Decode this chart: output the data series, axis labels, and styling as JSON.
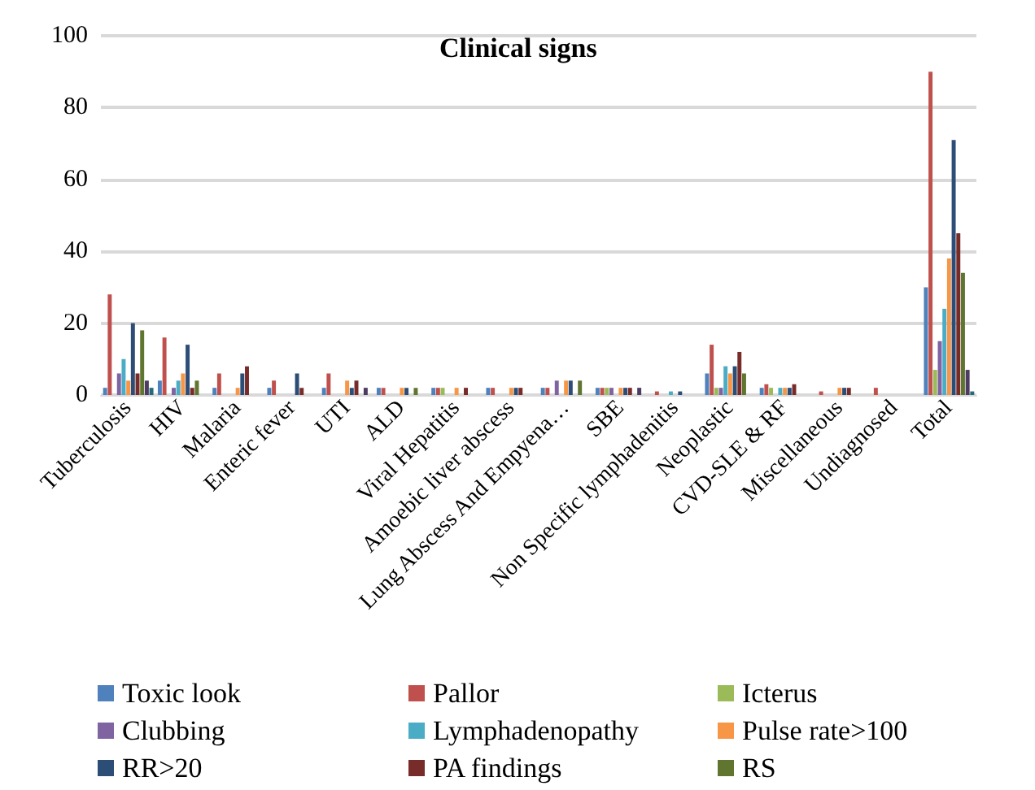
{
  "chart_data": {
    "type": "bar",
    "title": "Clinical signs",
    "categories": [
      "Tuberculosis",
      "HIV",
      "Malaria",
      "Enteric fever",
      "UTI",
      "ALD",
      "Viral Hepatitis",
      "Amoebic liver abscess",
      "Lung Abscess And Empyena…",
      "SBE",
      "Non Specific lymphadenitis",
      "Neoplastic",
      "CVD-SLE & RF",
      "Miscellaneous",
      "Undiagnosed",
      "Total"
    ],
    "series": [
      {
        "name": "Toxic look",
        "color": "#4f81bd",
        "values": [
          2,
          4,
          2,
          2,
          2,
          2,
          2,
          2,
          2,
          2,
          0,
          6,
          2,
          0,
          0,
          30
        ]
      },
      {
        "name": "Pallor",
        "color": "#c0504d",
        "values": [
          28,
          16,
          6,
          4,
          6,
          2,
          2,
          2,
          2,
          2,
          1,
          14,
          3,
          1,
          2,
          90
        ]
      },
      {
        "name": "Icterus",
        "color": "#9bbb59",
        "values": [
          0,
          0,
          0,
          0,
          0,
          0,
          2,
          0,
          0,
          2,
          0,
          2,
          2,
          0,
          0,
          7
        ]
      },
      {
        "name": "Clubbing",
        "color": "#8064a2",
        "values": [
          6,
          2,
          0,
          0,
          0,
          0,
          0,
          0,
          4,
          2,
          0,
          2,
          0,
          0,
          0,
          15
        ]
      },
      {
        "name": "Lymphadenopathy",
        "color": "#4bacc6",
        "values": [
          10,
          4,
          0,
          0,
          0,
          0,
          0,
          0,
          0,
          0,
          1,
          8,
          2,
          0,
          0,
          24
        ]
      },
      {
        "name": "Pulse rate>100",
        "color": "#f79646",
        "values": [
          4,
          6,
          2,
          0,
          4,
          2,
          2,
          2,
          4,
          2,
          0,
          6,
          2,
          2,
          0,
          38
        ]
      },
      {
        "name": "RR>20",
        "color": "#2c4d75",
        "values": [
          20,
          14,
          6,
          6,
          2,
          2,
          0,
          2,
          4,
          2,
          1,
          8,
          2,
          2,
          0,
          71
        ]
      },
      {
        "name": "PA findings",
        "color": "#772c2a",
        "values": [
          6,
          2,
          8,
          2,
          4,
          0,
          2,
          2,
          0,
          2,
          0,
          12,
          3,
          2,
          0,
          45
        ]
      },
      {
        "name": "RS",
        "color": "#5f7530",
        "values": [
          18,
          4,
          0,
          0,
          0,
          2,
          0,
          0,
          4,
          0,
          0,
          6,
          0,
          0,
          0,
          34
        ]
      },
      {
        "color": "#4d3b62",
        "values": [
          4,
          0,
          0,
          0,
          2,
          0,
          0,
          0,
          0,
          2,
          0,
          0,
          0,
          0,
          0,
          7
        ]
      },
      {
        "color": "#276a7c",
        "values": [
          2,
          0,
          0,
          0,
          0,
          0,
          0,
          0,
          0,
          0,
          0,
          0,
          0,
          0,
          0,
          1
        ]
      }
    ],
    "ylim": [
      0,
      100
    ],
    "yticks": [
      0,
      20,
      40,
      60,
      80,
      100
    ],
    "grid": "y",
    "legend": "bottom"
  }
}
